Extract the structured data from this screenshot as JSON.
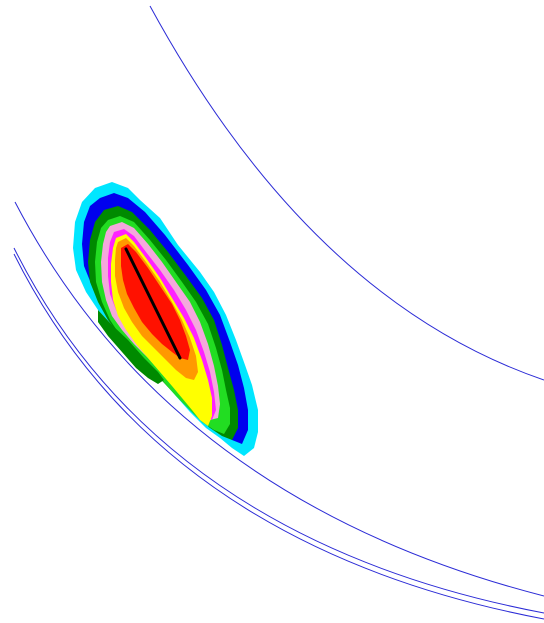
{
  "diagram": {
    "background_color": "#ffffff",
    "boundary_line_color": "#2b2bd6",
    "crack_line_color": "#000000",
    "contour_levels": [
      {
        "name": "cyan",
        "color": "#00e6ff"
      },
      {
        "name": "blue",
        "color": "#0000ee"
      },
      {
        "name": "dark-green",
        "color": "#008a00"
      },
      {
        "name": "bright-green",
        "color": "#22dd22"
      },
      {
        "name": "light-pink",
        "color": "#f4a8dc"
      },
      {
        "name": "magenta",
        "color": "#ff22ff"
      },
      {
        "name": "yellow",
        "color": "#ffff00"
      },
      {
        "name": "orange",
        "color": "#ff9900"
      },
      {
        "name": "red",
        "color": "#ff1100"
      }
    ]
  }
}
